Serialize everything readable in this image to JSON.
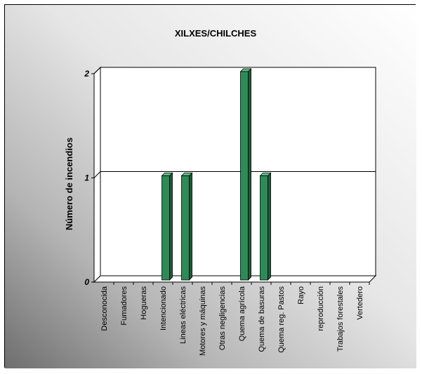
{
  "chart_data": {
    "type": "bar",
    "title": "XILXES/CHILCHES",
    "xlabel": "",
    "ylabel": "Número de incendios",
    "ylim": [
      0,
      2
    ],
    "yticks": [
      0,
      1,
      2
    ],
    "grid": true,
    "legend": "none",
    "categories": [
      "Desconocida",
      "Fumadores",
      "Hogueras",
      "Intencionado",
      "Lineas eléctricas",
      "Motores y máquinas",
      "Otras negligencias",
      "Quema agrícola",
      "Quema de basuras",
      "Quema reg. Pastos",
      "Rayo",
      "reproducción",
      "Trabajos forestales",
      "Vertedero"
    ],
    "values": [
      0,
      0,
      0,
      1,
      1,
      0,
      0,
      2,
      1,
      0,
      0,
      0,
      0,
      0
    ]
  },
  "colors": {
    "bar_front": "#2e8b57",
    "bar_side": "#1b5c37",
    "bar_top": "#5cbf85",
    "background_light": "#ffffff",
    "background_dark": "#6e6e6e"
  }
}
